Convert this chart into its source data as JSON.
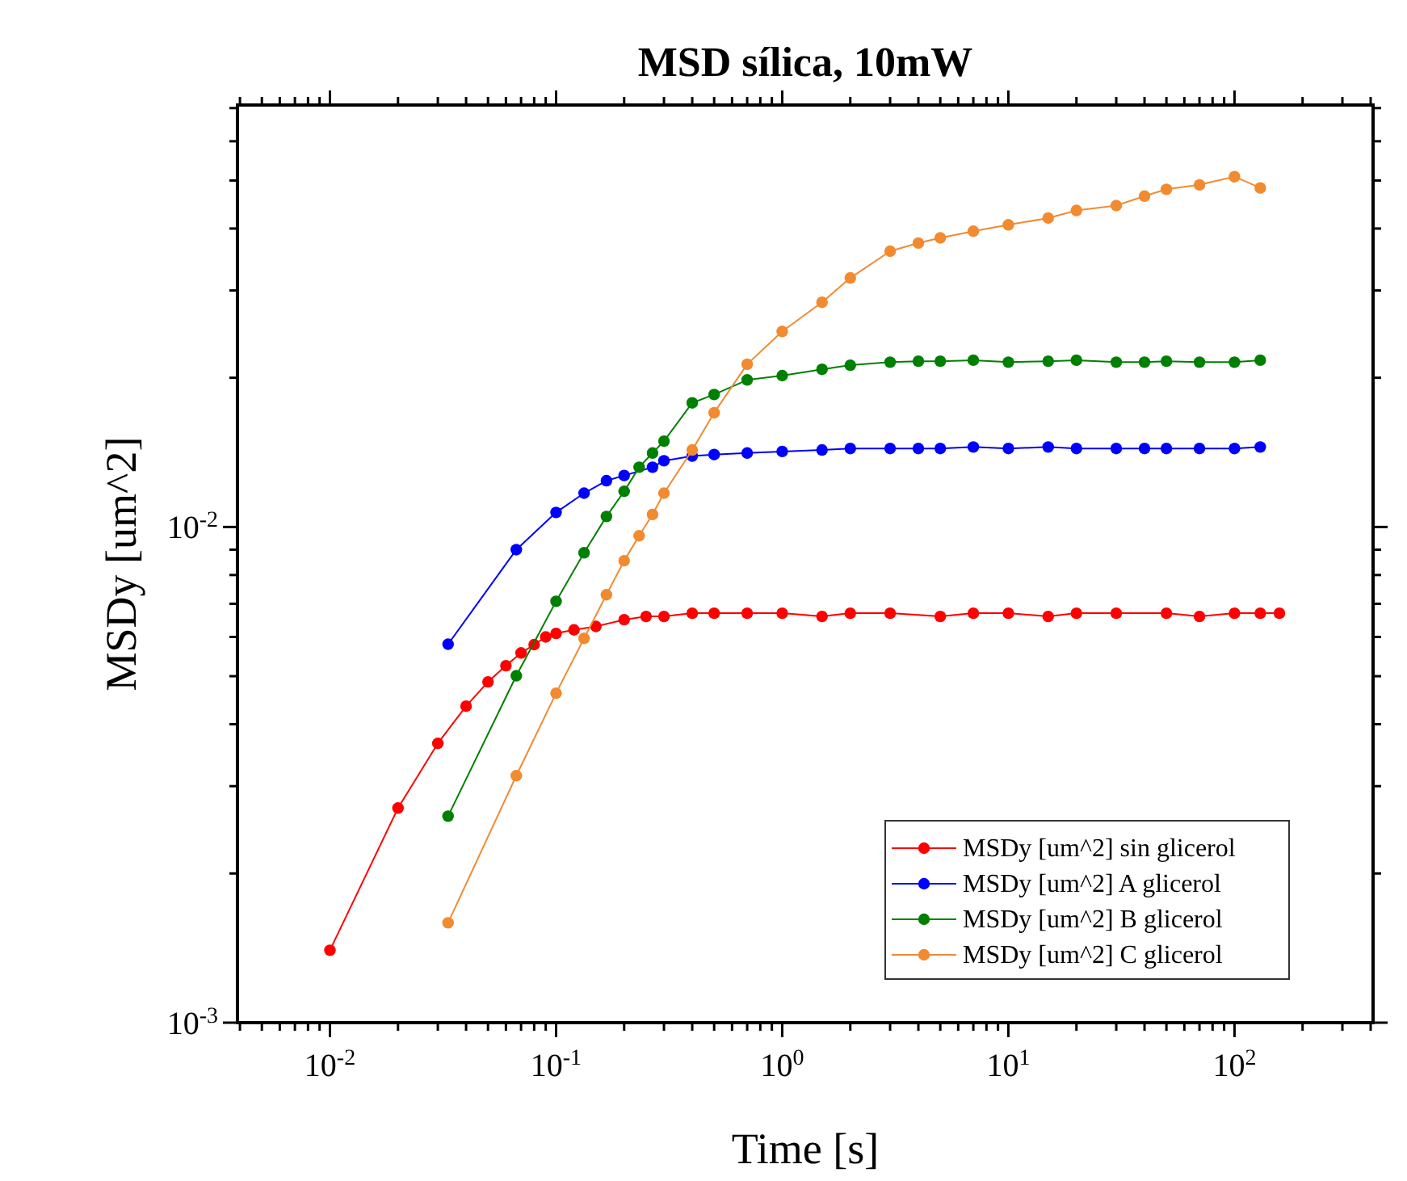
{
  "chart_data": {
    "type": "line",
    "title": "MSD sílica, 10mW",
    "xlabel": "Time [s]",
    "ylabel": "MSDy [um^2]",
    "log": "xy",
    "grid": false,
    "legend": "bottom right",
    "marker": "circle",
    "line_style": "solid",
    "xlim": [
      0.0039,
      410
    ],
    "ylim": [
      0.001,
      0.071
    ],
    "xticks": [
      {
        "value": 0.004,
        "label": null
      },
      {
        "value": 0.005,
        "label": null
      },
      {
        "value": 0.006,
        "label": null
      },
      {
        "value": 0.007,
        "label": null
      },
      {
        "value": 0.008,
        "label": null
      },
      {
        "value": 0.009,
        "label": null
      },
      {
        "value": 0.01,
        "label": "10$^{-2}$"
      },
      {
        "value": 0.02,
        "label": null
      },
      {
        "value": 0.03,
        "label": null
      },
      {
        "value": 0.04,
        "label": null
      },
      {
        "value": 0.05,
        "label": null
      },
      {
        "value": 0.06,
        "label": null
      },
      {
        "value": 0.07,
        "label": null
      },
      {
        "value": 0.08,
        "label": null
      },
      {
        "value": 0.09,
        "label": null
      },
      {
        "value": 0.1,
        "label": "10$^{-1}$"
      },
      {
        "value": 0.2,
        "label": null
      },
      {
        "value": 0.3,
        "label": null
      },
      {
        "value": 0.4,
        "label": null
      },
      {
        "value": 0.5,
        "label": null
      },
      {
        "value": 0.6,
        "label": null
      },
      {
        "value": 0.7,
        "label": null
      },
      {
        "value": 0.8,
        "label": null
      },
      {
        "value": 0.9,
        "label": null
      },
      {
        "value": 1,
        "label": "10$^{0}$"
      },
      {
        "value": 2,
        "label": null
      },
      {
        "value": 3,
        "label": null
      },
      {
        "value": 4,
        "label": null
      },
      {
        "value": 5,
        "label": null
      },
      {
        "value": 6,
        "label": null
      },
      {
        "value": 7,
        "label": null
      },
      {
        "value": 8,
        "label": null
      },
      {
        "value": 9,
        "label": null
      },
      {
        "value": 10,
        "label": "10$^{1}$"
      },
      {
        "value": 20,
        "label": null
      },
      {
        "value": 30,
        "label": null
      },
      {
        "value": 40,
        "label": null
      },
      {
        "value": 50,
        "label": null
      },
      {
        "value": 60,
        "label": null
      },
      {
        "value": 70,
        "label": null
      },
      {
        "value": 80,
        "label": null
      },
      {
        "value": 90,
        "label": null
      },
      {
        "value": 100,
        "label": "10$^{2}$"
      },
      {
        "value": 200,
        "label": null
      },
      {
        "value": 300,
        "label": null
      },
      {
        "value": 400,
        "label": null
      }
    ],
    "yticks": [
      {
        "value": 0.001,
        "label": "10$^{-3}$"
      },
      {
        "value": 0.002,
        "label": null
      },
      {
        "value": 0.003,
        "label": null
      },
      {
        "value": 0.004,
        "label": null
      },
      {
        "value": 0.005,
        "label": null
      },
      {
        "value": 0.006,
        "label": null
      },
      {
        "value": 0.007,
        "label": null
      },
      {
        "value": 0.008,
        "label": null
      },
      {
        "value": 0.009,
        "label": null
      },
      {
        "value": 0.01,
        "label": "10$^{-2}$"
      },
      {
        "value": 0.02,
        "label": null
      },
      {
        "value": 0.03,
        "label": null
      },
      {
        "value": 0.04,
        "label": null
      },
      {
        "value": 0.05,
        "label": null
      },
      {
        "value": 0.06,
        "label": null
      },
      {
        "value": 0.07,
        "label": null
      }
    ],
    "series": [
      {
        "name": "MSDy [um^2] sin glicerol",
        "color": "#ff0000",
        "x": [
          0.01,
          0.02,
          0.03,
          0.04,
          0.05,
          0.06,
          0.07,
          0.08,
          0.09,
          0.1,
          0.12,
          0.15,
          0.2,
          0.25,
          0.3,
          0.4,
          0.5,
          0.7,
          1,
          1.5,
          2,
          3,
          5,
          7,
          10,
          15,
          20,
          30,
          50,
          70,
          100,
          130,
          158
        ],
        "values": [
          0.0014,
          0.00271,
          0.00366,
          0.00435,
          0.00487,
          0.00525,
          0.00557,
          0.00579,
          0.006,
          0.0061,
          0.0062,
          0.0063,
          0.0065,
          0.0066,
          0.0066,
          0.0067,
          0.0067,
          0.0067,
          0.0067,
          0.0066,
          0.0067,
          0.0067,
          0.0066,
          0.0067,
          0.0067,
          0.0066,
          0.0067,
          0.0067,
          0.0067,
          0.0066,
          0.0067,
          0.0067,
          0.0067
        ]
      },
      {
        "name": "MSDy [um^2] A glicerol",
        "color": "#0000ff",
        "x": [
          0.0333,
          0.0667,
          0.1,
          0.133,
          0.167,
          0.2,
          0.267,
          0.3,
          0.4,
          0.5,
          0.7,
          1,
          1.5,
          2,
          3,
          4,
          5,
          7,
          10,
          15,
          20,
          30,
          40,
          50,
          70,
          100,
          130
        ],
        "values": [
          0.0058,
          0.009,
          0.0107,
          0.0117,
          0.0124,
          0.0127,
          0.0132,
          0.0136,
          0.0139,
          0.014,
          0.0141,
          0.0142,
          0.0143,
          0.0144,
          0.0144,
          0.0144,
          0.0144,
          0.0145,
          0.0144,
          0.0145,
          0.0144,
          0.0144,
          0.0144,
          0.0144,
          0.0144,
          0.0144,
          0.0145
        ]
      },
      {
        "name": "MSDy [um^2] B glicerol",
        "color": "#008000",
        "x": [
          0.0333,
          0.0667,
          0.1,
          0.133,
          0.167,
          0.2,
          0.233,
          0.267,
          0.3,
          0.4,
          0.5,
          0.7,
          1,
          1.5,
          2,
          3,
          4,
          5,
          7,
          10,
          15,
          20,
          30,
          40,
          50,
          70,
          100,
          130
        ],
        "values": [
          0.00261,
          0.00501,
          0.00708,
          0.00887,
          0.0105,
          0.0118,
          0.0132,
          0.0141,
          0.0149,
          0.0178,
          0.0185,
          0.0198,
          0.0202,
          0.0208,
          0.0212,
          0.0215,
          0.0216,
          0.0216,
          0.0217,
          0.0215,
          0.0216,
          0.0217,
          0.0215,
          0.0215,
          0.0216,
          0.0215,
          0.0215,
          0.0217
        ]
      },
      {
        "name": "MSDy [um^2] C glicerol",
        "color": "#f28a30",
        "x": [
          0.0333,
          0.0667,
          0.1,
          0.133,
          0.167,
          0.2,
          0.233,
          0.267,
          0.3,
          0.4,
          0.5,
          0.7,
          1,
          1.5,
          2,
          3,
          4,
          5,
          7,
          10,
          15,
          20,
          30,
          40,
          50,
          70,
          100,
          130
        ],
        "values": [
          0.00159,
          0.00315,
          0.00462,
          0.00596,
          0.0073,
          0.00855,
          0.0096,
          0.0106,
          0.0117,
          0.0143,
          0.017,
          0.0213,
          0.0248,
          0.0284,
          0.0318,
          0.036,
          0.0374,
          0.0383,
          0.0395,
          0.0407,
          0.042,
          0.0435,
          0.0445,
          0.0465,
          0.048,
          0.049,
          0.0509,
          0.0483
        ]
      }
    ]
  }
}
